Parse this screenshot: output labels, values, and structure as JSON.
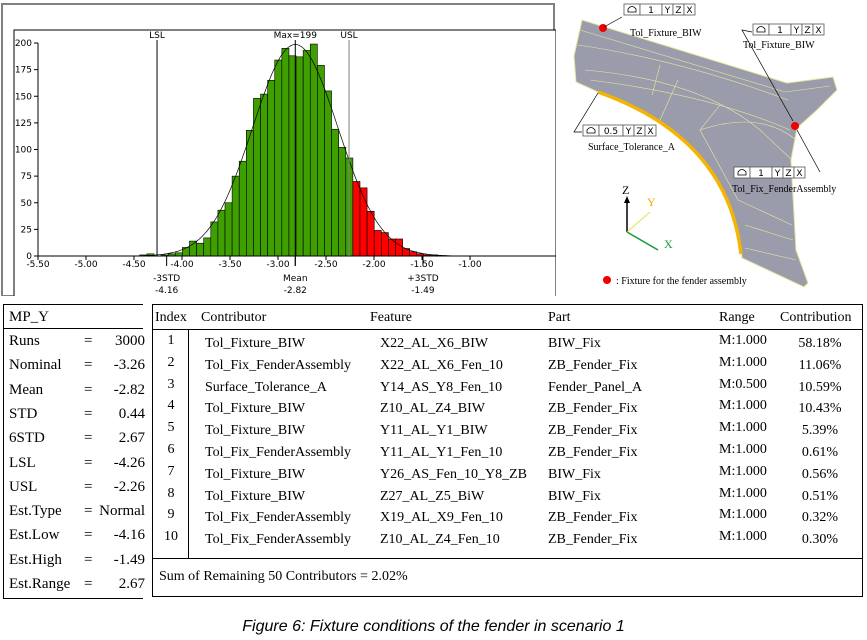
{
  "chart_data": {
    "type": "bar",
    "subtype": "histogram",
    "bin_start": -4.44,
    "bin_width": 0.074,
    "counts": [
      1,
      2,
      0,
      1,
      2,
      3,
      8,
      14,
      12,
      17,
      32,
      43,
      50,
      75,
      89,
      118,
      148,
      152,
      165,
      184,
      195,
      188,
      187,
      193,
      199,
      179,
      155,
      119,
      102,
      92,
      70,
      64,
      42,
      24,
      22,
      16,
      16,
      7,
      4,
      2,
      1,
      1
    ],
    "xlim": [
      -5.5,
      -0.8
    ],
    "ylim": [
      0,
      200
    ],
    "x_ticks": [
      "-5.50",
      "-5.00",
      "-4.50",
      "-4.00",
      "-3.50",
      "-3.00",
      "-2.50",
      "-2.00",
      "-1.50",
      "-1.00"
    ],
    "x_tick_values": [
      -5.5,
      -5.0,
      -4.5,
      -4.0,
      -3.5,
      -3.0,
      -2.5,
      -2.0,
      -1.5,
      -1.0
    ],
    "y_ticks": [
      "0",
      "25",
      "50",
      "75",
      "100",
      "125",
      "150",
      "175",
      "200"
    ],
    "y_tick_values": [
      0,
      25,
      50,
      75,
      100,
      125,
      150,
      175,
      200
    ],
    "colors": {
      "in_spec": "#3f9f00",
      "out_of_spec": "#ff0000"
    },
    "fit_curve": {
      "type": "normal",
      "mean": -2.82,
      "std": 0.445
    },
    "markers": {
      "lsl": {
        "label": "LSL",
        "value": -4.26
      },
      "usl": {
        "label": "USL",
        "value": -2.26
      },
      "max": {
        "label": "Max=199",
        "value": -2.82
      },
      "minus3std": {
        "label": "-3STD",
        "value_label": "-4.16",
        "value": -4.16
      },
      "mean": {
        "label": "Mean",
        "value_label": "-2.82",
        "value": -2.82
      },
      "plus3std": {
        "label": "+3STD",
        "value_label": "-1.49",
        "value": -1.49
      }
    }
  },
  "figure": {
    "callouts": [
      {
        "symbol": "profile-icon",
        "value": "1",
        "refs": [
          "Y",
          "Z",
          "X"
        ],
        "label": "Tol_Fixture_BIW"
      },
      {
        "symbol": "profile-icon",
        "value": "1",
        "refs": [
          "Y",
          "Z",
          "X"
        ],
        "label": "Tol_Fixture_BIW"
      },
      {
        "symbol": "profile-icon",
        "value": "0.5",
        "refs": [
          "Y",
          "Z",
          "X"
        ],
        "label": "Surface_Tolerance_A"
      },
      {
        "symbol": "profile-icon",
        "value": "1",
        "refs": [
          "Y",
          "Z",
          "X"
        ],
        "label": "Tol_Fix_FenderAssembly"
      }
    ],
    "axes": {
      "z": "Z",
      "y": "Y",
      "x": "X"
    },
    "legend": ": Fixture for the fender assembly",
    "colors": {
      "fixture": "#ee0000",
      "surface": "#f5b400",
      "panel": "#9a9cab"
    }
  },
  "stats": {
    "title": "MP_Y",
    "rows": [
      {
        "k": "Runs",
        "v": "3000"
      },
      {
        "k": "Nominal",
        "v": "-3.26"
      },
      {
        "k": "Mean",
        "v": "-2.82"
      },
      {
        "k": "STD",
        "v": "0.44"
      },
      {
        "k": "6STD",
        "v": "2.67"
      },
      {
        "k": "LSL",
        "v": "-4.26"
      },
      {
        "k": "USL",
        "v": "-2.26"
      },
      {
        "k": "Est.Type",
        "v": "Normal"
      },
      {
        "k": "Est.Low",
        "v": "-4.16"
      },
      {
        "k": "Est.High",
        "v": "-1.49"
      },
      {
        "k": "Est.Range",
        "v": "2.67"
      }
    ],
    "eq": "="
  },
  "contributors": {
    "headers": [
      "Index",
      "Contributor",
      "Feature",
      "Part",
      "Range",
      "Contribution"
    ],
    "rows": [
      [
        "1",
        "Tol_Fixture_BIW",
        "X22_AL_X6_BIW",
        "BIW_Fix",
        "M:1.000",
        "58.18%"
      ],
      [
        "2",
        "Tol_Fix_FenderAssembly",
        "X22_AL_X6_Fen_10",
        "ZB_Fender_Fix",
        "M:1.000",
        "11.06%"
      ],
      [
        "3",
        "Surface_Tolerance_A",
        "Y14_AS_Y8_Fen_10",
        "Fender_Panel_A",
        "M:0.500",
        "10.59%"
      ],
      [
        "4",
        "Tol_Fixture_BIW",
        "Z10_AL_Z4_BIW",
        "ZB_Fender_Fix",
        "M:1.000",
        "10.43%"
      ],
      [
        "5",
        "Tol_Fixture_BIW",
        "Y11_AL_Y1_BIW",
        "ZB_Fender_Fix",
        "M:1.000",
        "5.39%"
      ],
      [
        "6",
        "Tol_Fix_FenderAssembly",
        "Y11_AL_Y1_Fen_10",
        "ZB_Fender_Fix",
        "M:1.000",
        "0.61%"
      ],
      [
        "7",
        "Tol_Fixture_BIW",
        "Y26_AS_Fen_10_Y8_ZB",
        "BIW_Fix",
        "M:1.000",
        "0.56%"
      ],
      [
        "8",
        "Tol_Fixture_BIW",
        "Z27_AL_Z5_BiW",
        "BIW_Fix",
        "M:1.000",
        "0.51%"
      ],
      [
        "9",
        "Tol_Fix_FenderAssembly",
        "X19_AL_X9_Fen_10",
        "ZB_Fender_Fix",
        "M:1.000",
        "0.32%"
      ],
      [
        "10",
        "Tol_Fix_FenderAssembly",
        "Z10_AL_Z4_Fen_10",
        "ZB_Fender_Fix",
        "M:1.000",
        "0.30%"
      ]
    ],
    "summary": "Sum of Remaining  50 Contributors = 2.02%"
  },
  "caption": "Figure 6: Fixture conditions of the fender in scenario 1"
}
